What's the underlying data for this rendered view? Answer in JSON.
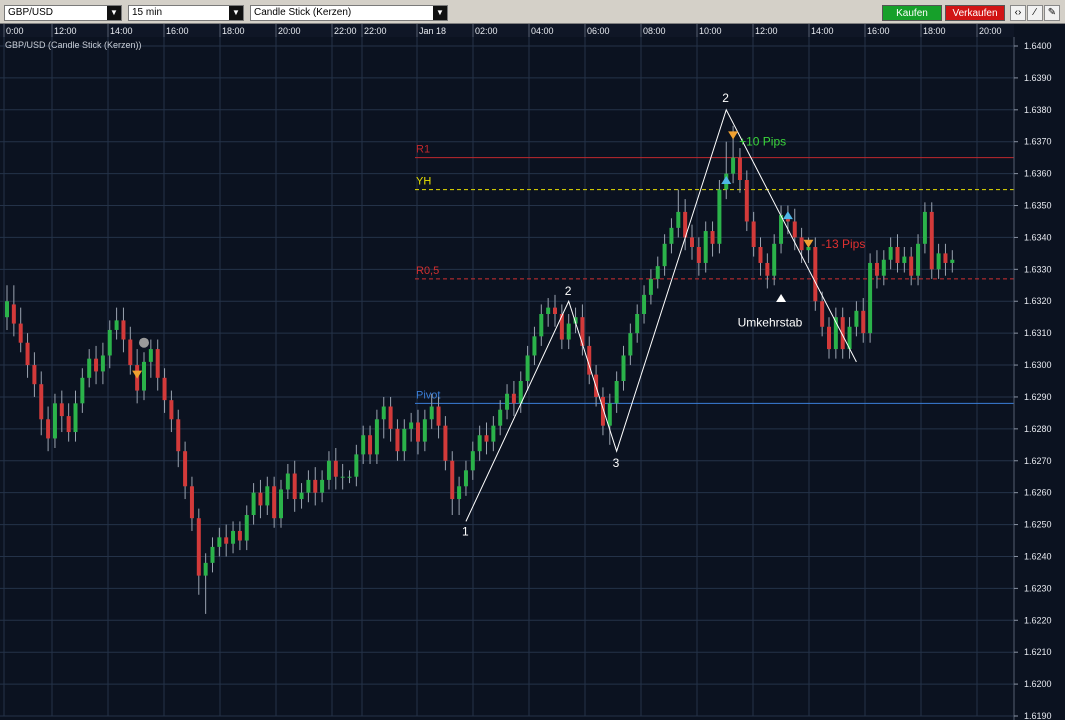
{
  "toolbar": {
    "symbol": "GBP/USD",
    "interval": "15 min",
    "chart_style": "Candle Stick (Kerzen)",
    "buy_label": "Kaufen",
    "sell_label": "Verkaufen",
    "tools": [
      "bar-chart-icon",
      "line-tool-icon",
      "edit-icon"
    ]
  },
  "colors": {
    "background": "#0b1220",
    "grid": "#243248",
    "bull": "#2bb34a",
    "bear": "#d33a3a",
    "wick": "#9aa3b0",
    "r1": "#c0282d",
    "yh": "#e8e000",
    "r05": "#d03030",
    "pivot": "#3a7ed8",
    "buy_bg": "#16a02a",
    "sell_bg": "#d11414"
  },
  "chart_data": {
    "type": "candlestick",
    "title": "GBP/USD (Candle Stick (Kerzen))",
    "time_axis_labels": [
      "0:00",
      "12:00",
      "14:00",
      "16:00",
      "18:00",
      "20:00",
      "22:00",
      "22:00",
      "Jan 18",
      "02:00",
      "04:00",
      "06:00",
      "08:00",
      "10:00",
      "12:00",
      "14:00",
      "16:00",
      "18:00",
      "20:00"
    ],
    "y_ticks": [
      "1.6400",
      "1.6390",
      "1.6380",
      "1.6370",
      "1.6360",
      "1.6350",
      "1.6340",
      "1.6330",
      "1.6320",
      "1.6310",
      "1.6300",
      "1.6290",
      "1.6280",
      "1.6270",
      "1.6260",
      "1.6250",
      "1.6240",
      "1.6230",
      "1.6220",
      "1.6210",
      "1.6200",
      "1.6190"
    ],
    "ylim": [
      1.619,
      1.64
    ],
    "levels": [
      {
        "label": "R1",
        "value": 1.6365,
        "style": "solid",
        "color": "#c0282d"
      },
      {
        "label": "YH",
        "value": 1.6355,
        "style": "dashed",
        "color": "#e8e000"
      },
      {
        "label": "R0,5",
        "value": 1.6327,
        "style": "dashed",
        "color": "#d03030"
      },
      {
        "label": "Pivot",
        "value": 1.6288,
        "style": "solid",
        "color": "#3a7ed8"
      }
    ],
    "annotations": {
      "wave_labels": [
        "1",
        "2",
        "3",
        "2"
      ],
      "profit_label": "+10 Pips",
      "loss_label": "-13 Pips",
      "reversal_label": "Umkehrstab"
    },
    "candles": [
      [
        1.6315,
        1.632,
        1.6325,
        1.6311
      ],
      [
        1.6319,
        1.6313,
        1.6325,
        1.6309
      ],
      [
        1.6313,
        1.6307,
        1.6318,
        1.6304
      ],
      [
        1.6307,
        1.63,
        1.631,
        1.6296
      ],
      [
        1.63,
        1.6294,
        1.6304,
        1.629
      ],
      [
        1.6294,
        1.6283,
        1.6298,
        1.6278
      ],
      [
        1.6283,
        1.6277,
        1.6287,
        1.6273
      ],
      [
        1.6277,
        1.6288,
        1.6291,
        1.6274
      ],
      [
        1.6288,
        1.6284,
        1.6292,
        1.6279
      ],
      [
        1.6284,
        1.6279,
        1.6288,
        1.6276
      ],
      [
        1.6279,
        1.6288,
        1.6292,
        1.6276
      ],
      [
        1.6288,
        1.6296,
        1.6299,
        1.6285
      ],
      [
        1.6296,
        1.6302,
        1.6305,
        1.6293
      ],
      [
        1.6302,
        1.6298,
        1.6306,
        1.6294
      ],
      [
        1.6298,
        1.6303,
        1.6307,
        1.6294
      ],
      [
        1.6303,
        1.6311,
        1.6314,
        1.6299
      ],
      [
        1.6311,
        1.6314,
        1.6318,
        1.6308
      ],
      [
        1.6314,
        1.6308,
        1.6318,
        1.6304
      ],
      [
        1.6308,
        1.63,
        1.6312,
        1.6297
      ],
      [
        1.63,
        1.6292,
        1.6305,
        1.6288
      ],
      [
        1.6292,
        1.6301,
        1.6304,
        1.6289
      ],
      [
        1.6301,
        1.6305,
        1.6308,
        1.6296
      ],
      [
        1.6305,
        1.6296,
        1.6308,
        1.6292
      ],
      [
        1.6296,
        1.6289,
        1.6299,
        1.6285
      ],
      [
        1.6289,
        1.6283,
        1.6292,
        1.6279
      ],
      [
        1.6283,
        1.6273,
        1.6286,
        1.6268
      ],
      [
        1.6273,
        1.6262,
        1.6276,
        1.6258
      ],
      [
        1.6262,
        1.6252,
        1.6265,
        1.6248
      ],
      [
        1.6252,
        1.6234,
        1.6255,
        1.6228
      ],
      [
        1.6234,
        1.6238,
        1.6241,
        1.6222
      ],
      [
        1.6238,
        1.6243,
        1.6246,
        1.6235
      ],
      [
        1.6243,
        1.6246,
        1.6249,
        1.624
      ],
      [
        1.6246,
        1.6244,
        1.625,
        1.624
      ],
      [
        1.6244,
        1.6248,
        1.6251,
        1.6241
      ],
      [
        1.6248,
        1.6245,
        1.6251,
        1.6242
      ],
      [
        1.6245,
        1.6253,
        1.6256,
        1.6242
      ],
      [
        1.6253,
        1.626,
        1.6263,
        1.625
      ],
      [
        1.626,
        1.6256,
        1.6264,
        1.6252
      ],
      [
        1.6256,
        1.6262,
        1.6265,
        1.6253
      ],
      [
        1.6262,
        1.6252,
        1.6265,
        1.6249
      ],
      [
        1.6252,
        1.6261,
        1.6264,
        1.6249
      ],
      [
        1.6261,
        1.6266,
        1.6269,
        1.6258
      ],
      [
        1.6266,
        1.6258,
        1.627,
        1.6254
      ],
      [
        1.6258,
        1.626,
        1.6263,
        1.6255
      ],
      [
        1.626,
        1.6264,
        1.6267,
        1.6257
      ],
      [
        1.6264,
        1.626,
        1.6268,
        1.6256
      ],
      [
        1.626,
        1.6264,
        1.6267,
        1.6257
      ],
      [
        1.6264,
        1.627,
        1.6273,
        1.6261
      ],
      [
        1.627,
        1.6265,
        1.6274,
        1.6261
      ],
      [
        1.6265,
        1.6265,
        1.6269,
        1.6261
      ],
      [
        1.6265,
        1.6265,
        1.6267,
        1.6263
      ],
      [
        1.6265,
        1.6272,
        1.6275,
        1.6262
      ],
      [
        1.6272,
        1.6278,
        1.6281,
        1.6269
      ],
      [
        1.6278,
        1.6272,
        1.6281,
        1.6269
      ],
      [
        1.6272,
        1.6283,
        1.6286,
        1.6269
      ],
      [
        1.6283,
        1.6287,
        1.629,
        1.6277
      ],
      [
        1.6287,
        1.628,
        1.629,
        1.6276
      ],
      [
        1.628,
        1.6273,
        1.6283,
        1.627
      ],
      [
        1.6273,
        1.628,
        1.6283,
        1.627
      ],
      [
        1.628,
        1.6282,
        1.6285,
        1.6276
      ],
      [
        1.6282,
        1.6276,
        1.6286,
        1.6272
      ],
      [
        1.6276,
        1.6283,
        1.6286,
        1.6273
      ],
      [
        1.6283,
        1.6287,
        1.6291,
        1.628
      ],
      [
        1.6287,
        1.6281,
        1.629,
        1.6277
      ],
      [
        1.6281,
        1.627,
        1.6284,
        1.6267
      ],
      [
        1.627,
        1.6258,
        1.6273,
        1.6253
      ],
      [
        1.6258,
        1.6262,
        1.6265,
        1.6253
      ],
      [
        1.6262,
        1.6267,
        1.627,
        1.6259
      ],
      [
        1.6267,
        1.6273,
        1.6276,
        1.6264
      ],
      [
        1.6273,
        1.6278,
        1.6281,
        1.627
      ],
      [
        1.6278,
        1.6276,
        1.6282,
        1.6272
      ],
      [
        1.6276,
        1.6281,
        1.6284,
        1.6273
      ],
      [
        1.6281,
        1.6286,
        1.6289,
        1.6278
      ],
      [
        1.6286,
        1.6291,
        1.6294,
        1.6283
      ],
      [
        1.6291,
        1.6288,
        1.6295,
        1.6284
      ],
      [
        1.6288,
        1.6295,
        1.6298,
        1.6285
      ],
      [
        1.6295,
        1.6303,
        1.6306,
        1.6292
      ],
      [
        1.6303,
        1.6309,
        1.6312,
        1.63
      ],
      [
        1.6309,
        1.6316,
        1.6319,
        1.6306
      ],
      [
        1.6316,
        1.6318,
        1.6321,
        1.6312
      ],
      [
        1.6318,
        1.6316,
        1.6322,
        1.6312
      ],
      [
        1.6316,
        1.6308,
        1.6319,
        1.6305
      ],
      [
        1.6308,
        1.6313,
        1.6316,
        1.6305
      ],
      [
        1.6313,
        1.6315,
        1.6318,
        1.631
      ],
      [
        1.6315,
        1.6306,
        1.6319,
        1.6303
      ],
      [
        1.6306,
        1.6297,
        1.6309,
        1.6294
      ],
      [
        1.6297,
        1.629,
        1.63,
        1.6287
      ],
      [
        1.629,
        1.6281,
        1.6293,
        1.6278
      ],
      [
        1.6281,
        1.6288,
        1.6291,
        1.6275
      ],
      [
        1.6288,
        1.6295,
        1.6298,
        1.6285
      ],
      [
        1.6295,
        1.6303,
        1.6306,
        1.6292
      ],
      [
        1.6303,
        1.631,
        1.6313,
        1.63
      ],
      [
        1.631,
        1.6316,
        1.6319,
        1.6307
      ],
      [
        1.6316,
        1.6322,
        1.6325,
        1.6313
      ],
      [
        1.6322,
        1.6327,
        1.633,
        1.6319
      ],
      [
        1.6327,
        1.6331,
        1.6334,
        1.6324
      ],
      [
        1.6331,
        1.6338,
        1.6341,
        1.6328
      ],
      [
        1.6338,
        1.6343,
        1.6346,
        1.6335
      ],
      [
        1.6343,
        1.6348,
        1.6355,
        1.634
      ],
      [
        1.6348,
        1.634,
        1.6352,
        1.6336
      ],
      [
        1.634,
        1.6337,
        1.6344,
        1.6333
      ],
      [
        1.6337,
        1.6332,
        1.634,
        1.6328
      ],
      [
        1.6332,
        1.6342,
        1.6345,
        1.6329
      ],
      [
        1.6342,
        1.6338,
        1.6345,
        1.6334
      ],
      [
        1.6338,
        1.6355,
        1.6358,
        1.6335
      ],
      [
        1.6355,
        1.636,
        1.637,
        1.6352
      ],
      [
        1.636,
        1.6365,
        1.6375,
        1.6357
      ],
      [
        1.6365,
        1.6358,
        1.6368,
        1.6354
      ],
      [
        1.6358,
        1.6345,
        1.6361,
        1.6342
      ],
      [
        1.6345,
        1.6337,
        1.6348,
        1.6334
      ],
      [
        1.6337,
        1.6332,
        1.634,
        1.6328
      ],
      [
        1.6332,
        1.6328,
        1.6335,
        1.6324
      ],
      [
        1.6328,
        1.6338,
        1.6341,
        1.6325
      ],
      [
        1.6338,
        1.6347,
        1.635,
        1.6335
      ],
      [
        1.6347,
        1.6345,
        1.635,
        1.6341
      ],
      [
        1.6345,
        1.634,
        1.6349,
        1.6336
      ],
      [
        1.634,
        1.6336,
        1.6343,
        1.6332
      ],
      [
        1.6336,
        1.6337,
        1.634,
        1.6332
      ],
      [
        1.6337,
        1.632,
        1.634,
        1.6317
      ],
      [
        1.632,
        1.6312,
        1.6323,
        1.6309
      ],
      [
        1.6312,
        1.6305,
        1.6315,
        1.6302
      ],
      [
        1.6305,
        1.6315,
        1.6318,
        1.6302
      ],
      [
        1.6315,
        1.6305,
        1.6318,
        1.6302
      ],
      [
        1.6305,
        1.6312,
        1.6315,
        1.6302
      ],
      [
        1.6312,
        1.6317,
        1.632,
        1.6309
      ],
      [
        1.6317,
        1.631,
        1.6321,
        1.6307
      ],
      [
        1.631,
        1.6332,
        1.6335,
        1.6307
      ],
      [
        1.6332,
        1.6328,
        1.6336,
        1.6324
      ],
      [
        1.6328,
        1.6333,
        1.6336,
        1.6325
      ],
      [
        1.6333,
        1.6337,
        1.634,
        1.633
      ],
      [
        1.6337,
        1.6332,
        1.6341,
        1.6329
      ],
      [
        1.6332,
        1.6334,
        1.6337,
        1.6329
      ],
      [
        1.6334,
        1.6328,
        1.6337,
        1.6325
      ],
      [
        1.6328,
        1.6338,
        1.6341,
        1.6325
      ],
      [
        1.6338,
        1.6348,
        1.6351,
        1.6335
      ],
      [
        1.6348,
        1.633,
        1.6351,
        1.6327
      ],
      [
        1.633,
        1.6335,
        1.6338,
        1.6327
      ],
      [
        1.6335,
        1.6332,
        1.6338,
        1.6328
      ],
      [
        1.6332,
        1.6333,
        1.6336,
        1.6329
      ]
    ]
  }
}
